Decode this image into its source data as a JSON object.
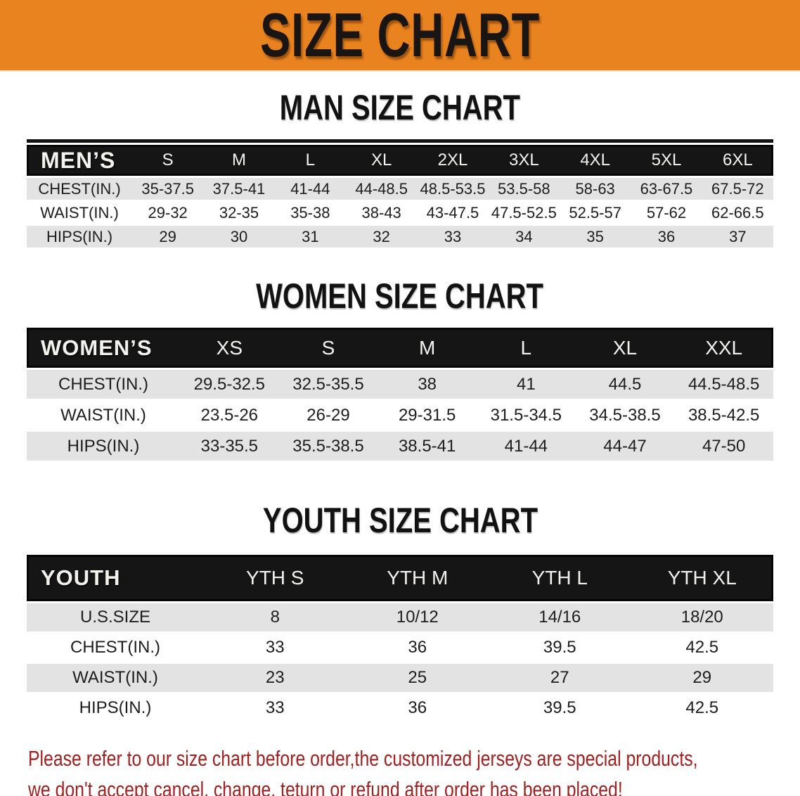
{
  "banner": {
    "title": "SIZE CHART"
  },
  "colors": {
    "banner_bg": "#E8831F",
    "title_color": "#181512",
    "header_bg": "#151515",
    "row_gray": "#E3E3E3",
    "disclaimer_red": "#A32020"
  },
  "sections": [
    {
      "heading": "MAN SIZE CHART",
      "table": {
        "corner_label": "MEN’S",
        "columns": [
          "S",
          "M",
          "L",
          "XL",
          "2XL",
          "3XL",
          "4XL",
          "5XL",
          "6XL"
        ],
        "rows": [
          {
            "label": "CHEST(IN.)",
            "values": [
              "35-37.5",
              "37.5-41",
              "41-44",
              "44-48.5",
              "48.5-53.5",
              "53.5-58",
              "58-63",
              "63-67.5",
              "67.5-72"
            ]
          },
          {
            "label": "WAIST(IN.)",
            "values": [
              "29-32",
              "32-35",
              "35-38",
              "38-43",
              "43-47.5",
              "47.5-52.5",
              "52.5-57",
              "57-62",
              "62-66.5"
            ]
          },
          {
            "label": "HIPS(IN.)",
            "values": [
              "29",
              "30",
              "31",
              "32",
              "33",
              "34",
              "35",
              "36",
              "37"
            ]
          }
        ]
      }
    },
    {
      "heading": "WOMEN SIZE CHART",
      "table": {
        "corner_label": "WOMEN’S",
        "columns": [
          "XS",
          "S",
          "M",
          "L",
          "XL",
          "XXL"
        ],
        "rows": [
          {
            "label": "CHEST(IN.)",
            "values": [
              "29.5-32.5",
              "32.5-35.5",
              "38",
              "41",
              "44.5",
              "44.5-48.5"
            ]
          },
          {
            "label": "WAIST(IN.)",
            "values": [
              "23.5-26",
              "26-29",
              "29-31.5",
              "31.5-34.5",
              "34.5-38.5",
              "38.5-42.5"
            ]
          },
          {
            "label": "HIPS(IN.)",
            "values": [
              "33-35.5",
              "35.5-38.5",
              "38.5-41",
              "41-44",
              "44-47",
              "47-50"
            ]
          }
        ]
      }
    },
    {
      "heading": "YOUTH SIZE CHART",
      "table": {
        "corner_label": "YOUTH",
        "columns": [
          "YTH S",
          "YTH M",
          "YTH L",
          "YTH XL"
        ],
        "rows": [
          {
            "label": "U.S.SIZE",
            "values": [
              "8",
              "10/12",
              "14/16",
              "18/20"
            ]
          },
          {
            "label": "CHEST(IN.)",
            "values": [
              "33",
              "36",
              "39.5",
              "42.5"
            ]
          },
          {
            "label": "WAIST(IN.)",
            "values": [
              "23",
              "25",
              "27",
              "29"
            ]
          },
          {
            "label": "HIPS(IN.)",
            "values": [
              "33",
              "36",
              "39.5",
              "42.5"
            ]
          }
        ]
      }
    }
  ],
  "disclaimer": {
    "line1": "Please refer to our size chart before order,the customized jerseys are special products,",
    "line2": "we don't accept cancel, change, teturn or refund after order has been placed!"
  }
}
